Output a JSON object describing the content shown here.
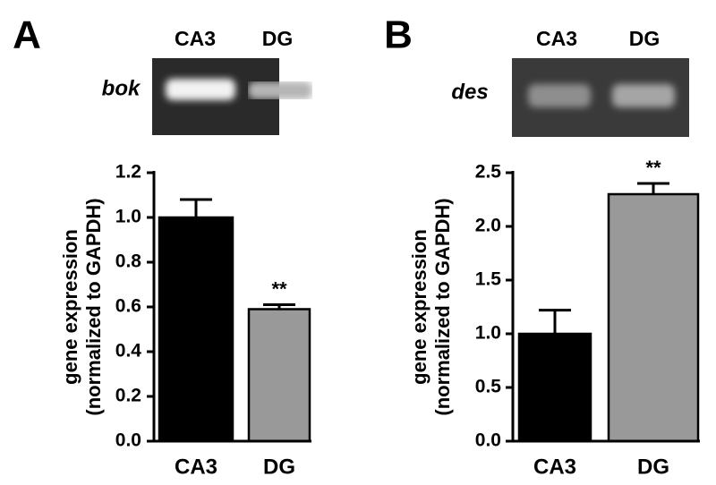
{
  "chart_data": [
    {
      "type": "bar",
      "panel": "A",
      "gene": "bok",
      "gel_lanes": [
        "CA3",
        "DG"
      ],
      "ylabel": [
        "gene expression",
        "(normalized to GAPDH)"
      ],
      "categories": [
        "CA3",
        "DG"
      ],
      "values": [
        1.0,
        0.59
      ],
      "errors": [
        0.08,
        0.02
      ],
      "colors": [
        "#000000",
        "#999999"
      ],
      "significance": [
        null,
        "**"
      ],
      "ylim": [
        0,
        1.2
      ],
      "yticks": [
        {
          "value": 0,
          "label": "0.0"
        },
        0.2,
        0.4,
        0.6,
        0.8,
        {
          "value": 1,
          "label": "1.0"
        },
        1.2
      ]
    },
    {
      "type": "bar",
      "panel": "B",
      "gene": "des",
      "gel_lanes": [
        "CA3",
        "DG"
      ],
      "ylabel": [
        "gene expression",
        "(normalized to GAPDH)"
      ],
      "categories": [
        "CA3",
        "DG"
      ],
      "values": [
        1.0,
        2.3
      ],
      "errors": [
        0.22,
        0.1
      ],
      "colors": [
        "#000000",
        "#999999"
      ],
      "significance": [
        null,
        "**"
      ],
      "ylim": [
        0,
        2.5
      ],
      "yticks": [
        {
          "value": 0,
          "label": "0.0"
        },
        0.5,
        {
          "value": 1,
          "label": "1.0"
        },
        1.5,
        {
          "value": 2,
          "label": "2.0"
        },
        2.5
      ]
    }
  ]
}
